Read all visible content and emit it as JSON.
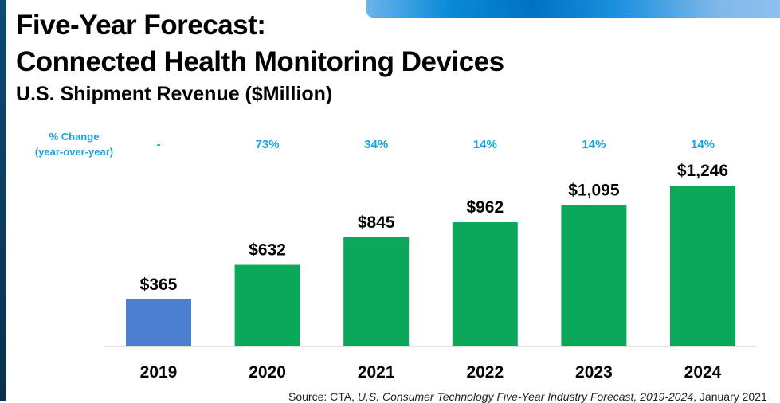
{
  "title_line1": "Five-Year Forecast:",
  "title_line2": "Connected Health Monitoring Devices",
  "subtitle": "U.S. Shipment Revenue ($Million)",
  "source_prefix": "Source: CTA, ",
  "source_italic": "U.S. Consumer Technology Five-Year Industry Forecast, 2019-2024",
  "source_suffix": ", January 2021",
  "chart_data": {
    "type": "bar",
    "title": "U.S. Shipment Revenue ($Million)",
    "categories": [
      "2019",
      "2020",
      "2021",
      "2022",
      "2023",
      "2024"
    ],
    "values": [
      365,
      632,
      845,
      962,
      1095,
      1246
    ],
    "value_labels": [
      "$365",
      "$632",
      "$845",
      "$962",
      "$1,095",
      "$1,246"
    ],
    "pct_change_label": [
      "% Change",
      "(year-over-year)"
    ],
    "pct_change": [
      "-",
      "73%",
      "34%",
      "14%",
      "14%",
      "14%"
    ],
    "colors": [
      "#4a7fd0",
      "#0aa858",
      "#0aa858",
      "#0aa858",
      "#0aa858",
      "#0aa858"
    ],
    "pct_color": "#1aa3e0",
    "ylim": [
      0,
      1246
    ],
    "grid": false
  }
}
